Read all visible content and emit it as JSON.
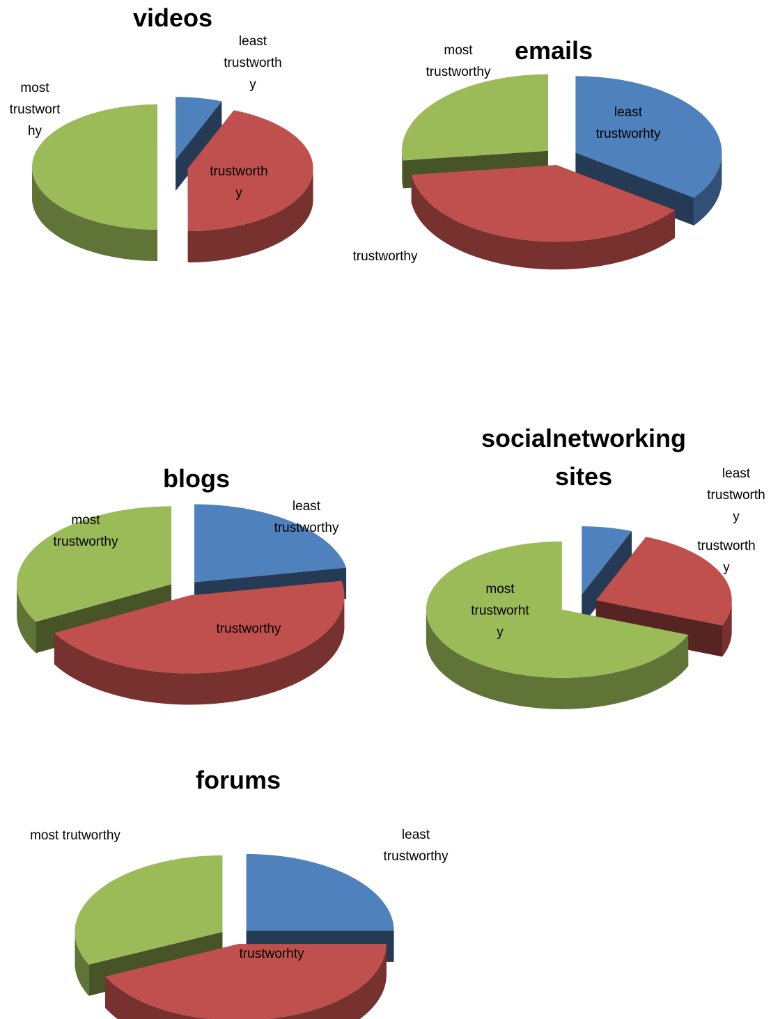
{
  "chart_data": [
    {
      "type": "pie",
      "title": "videos",
      "categories": [
        "least trustworthy",
        "trustworthy",
        "most trustworthy"
      ],
      "values": [
        6,
        44,
        50
      ],
      "colors": [
        "#4f81bd",
        "#c0504d",
        "#9bbb59"
      ]
    },
    {
      "type": "pie",
      "title": "emails",
      "categories": [
        "least trustworhty",
        "trustworthy",
        "most trustworthy"
      ],
      "values": [
        35,
        38,
        27
      ],
      "colors": [
        "#4f81bd",
        "#c0504d",
        "#9bbb59"
      ]
    },
    {
      "type": "pie",
      "title": "blogs",
      "categories": [
        "least trustworthy",
        "trustworthy",
        "most trustworthy"
      ],
      "values": [
        22,
        45,
        33
      ],
      "colors": [
        "#4f81bd",
        "#c0504d",
        "#9bbb59"
      ]
    },
    {
      "type": "pie",
      "title": "socialnetworking sites",
      "categories": [
        "least trustworthy",
        "trustworthy",
        "most trustworhty"
      ],
      "values": [
        6,
        25,
        69
      ],
      "colors": [
        "#4f81bd",
        "#c0504d",
        "#9bbb59"
      ]
    },
    {
      "type": "pie",
      "title": "forums",
      "categories": [
        "least trustworthy",
        "trustworhty",
        "most trutworthy"
      ],
      "values": [
        25,
        43,
        32
      ],
      "colors": [
        "#4f81bd",
        "#c0504d",
        "#9bbb59"
      ]
    }
  ]
}
